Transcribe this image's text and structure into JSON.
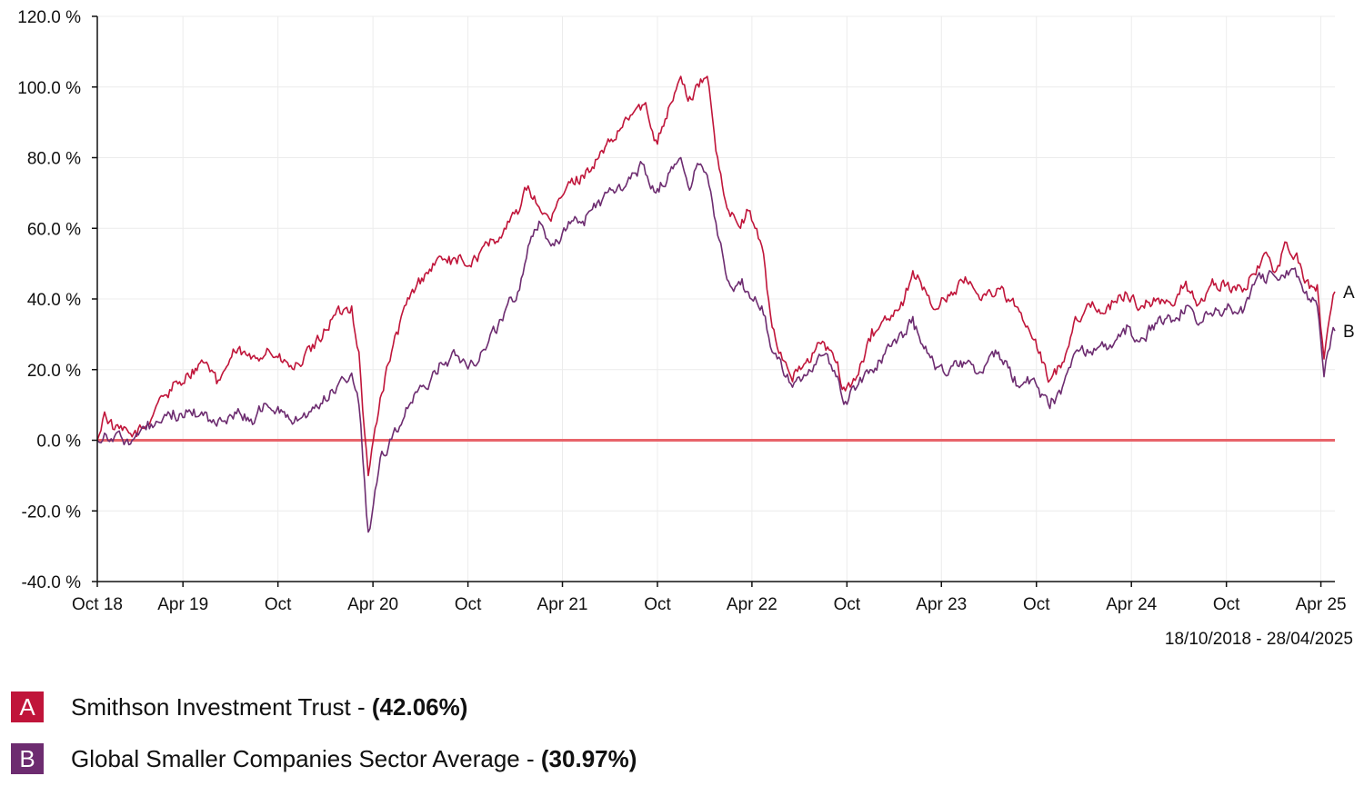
{
  "date_range": "18/10/2018 - 28/04/2025",
  "legend": [
    {
      "badge": "A",
      "name": "Smithson Investment Trust - ",
      "value": "(42.06%)",
      "color": "#c0153a"
    },
    {
      "badge": "B",
      "name": "Global Smaller Companies Sector Average  - ",
      "value": "(30.97%)",
      "color": "#6d2c70"
    }
  ],
  "chart_data": {
    "type": "line",
    "title": "",
    "xlabel": "",
    "ylabel": "",
    "ylim": [
      -40,
      120
    ],
    "y_ticks": [
      120,
      100,
      80,
      60,
      40,
      20,
      0,
      -20,
      -40
    ],
    "y_tick_labels": [
      "120.0 %",
      "100.0 %",
      "80.0 %",
      "60.0 %",
      "40.0 %",
      "20.0 %",
      "0.0 %",
      "-20.0 %",
      "-40.0 %"
    ],
    "x_range": [
      "2018-10-18",
      "2025-04-28"
    ],
    "x_ticks": [
      "2018-10-01",
      "2019-04-01",
      "2019-10-01",
      "2020-04-01",
      "2020-10-01",
      "2021-04-01",
      "2021-10-01",
      "2022-04-01",
      "2022-10-01",
      "2023-04-01",
      "2023-10-01",
      "2024-04-01",
      "2024-10-01",
      "2025-04-01"
    ],
    "x_tick_labels": [
      "Oct 18",
      "Apr 19",
      "Oct",
      "Apr 20",
      "Oct",
      "Apr 21",
      "Oct",
      "Apr 22",
      "Oct",
      "Apr 23",
      "Oct",
      "Apr 24",
      "Oct",
      "Apr 25"
    ],
    "grid": true,
    "zero_line_color": "#e8636a",
    "series": [
      {
        "name": "A",
        "color": "#c0153a",
        "points": [
          [
            "2018-10-18",
            0
          ],
          [
            "2018-11-01",
            8
          ],
          [
            "2018-11-20",
            3
          ],
          [
            "2018-12-24",
            1
          ],
          [
            "2019-01-20",
            4
          ],
          [
            "2019-02-15",
            12
          ],
          [
            "2019-03-10",
            14
          ],
          [
            "2019-04-10",
            19
          ],
          [
            "2019-05-10",
            22
          ],
          [
            "2019-06-05",
            16
          ],
          [
            "2019-07-10",
            25
          ],
          [
            "2019-08-10",
            23
          ],
          [
            "2019-09-10",
            26
          ],
          [
            "2019-10-10",
            22
          ],
          [
            "2019-11-01",
            20
          ],
          [
            "2019-12-10",
            26
          ],
          [
            "2020-01-10",
            34
          ],
          [
            "2020-02-20",
            38
          ],
          [
            "2020-03-05",
            25
          ],
          [
            "2020-03-16",
            2
          ],
          [
            "2020-03-23",
            -10
          ],
          [
            "2020-04-15",
            12
          ],
          [
            "2020-05-10",
            27
          ],
          [
            "2020-06-10",
            40
          ],
          [
            "2020-07-10",
            47
          ],
          [
            "2020-08-10",
            52
          ],
          [
            "2020-09-10",
            50
          ],
          [
            "2020-10-10",
            51
          ],
          [
            "2020-11-10",
            55
          ],
          [
            "2020-12-10",
            60
          ],
          [
            "2021-01-05",
            64
          ],
          [
            "2021-01-25",
            72
          ],
          [
            "2021-02-15",
            66
          ],
          [
            "2021-03-10",
            62
          ],
          [
            "2021-04-10",
            72
          ],
          [
            "2021-05-10",
            75
          ],
          [
            "2021-06-10",
            80
          ],
          [
            "2021-07-10",
            85
          ],
          [
            "2021-08-10",
            92
          ],
          [
            "2021-09-05",
            95
          ],
          [
            "2021-09-28",
            85
          ],
          [
            "2021-10-25",
            95
          ],
          [
            "2021-11-15",
            103
          ],
          [
            "2021-11-29",
            96
          ],
          [
            "2021-12-20",
            100
          ],
          [
            "2022-01-05",
            103
          ],
          [
            "2022-01-25",
            80
          ],
          [
            "2022-02-15",
            65
          ],
          [
            "2022-03-10",
            60
          ],
          [
            "2022-03-25",
            65
          ],
          [
            "2022-04-20",
            55
          ],
          [
            "2022-05-10",
            32
          ],
          [
            "2022-06-15",
            18
          ],
          [
            "2022-07-20",
            22
          ],
          [
            "2022-08-15",
            28
          ],
          [
            "2022-09-10",
            22
          ],
          [
            "2022-09-28",
            14
          ],
          [
            "2022-10-20",
            18
          ],
          [
            "2022-11-15",
            28
          ],
          [
            "2022-12-10",
            34
          ],
          [
            "2023-01-20",
            40
          ],
          [
            "2023-02-05",
            48
          ],
          [
            "2023-03-20",
            37
          ],
          [
            "2023-04-20",
            42
          ],
          [
            "2023-05-20",
            45
          ],
          [
            "2023-06-20",
            41
          ],
          [
            "2023-07-20",
            43
          ],
          [
            "2023-08-20",
            38
          ],
          [
            "2023-09-20",
            30
          ],
          [
            "2023-10-27",
            17
          ],
          [
            "2023-11-20",
            22
          ],
          [
            "2023-12-15",
            35
          ],
          [
            "2024-01-20",
            38
          ],
          [
            "2024-02-20",
            37
          ],
          [
            "2024-03-20",
            42
          ],
          [
            "2024-04-20",
            38
          ],
          [
            "2024-05-20",
            40
          ],
          [
            "2024-06-20",
            38
          ],
          [
            "2024-07-15",
            45
          ],
          [
            "2024-08-05",
            38
          ],
          [
            "2024-09-01",
            44
          ],
          [
            "2024-10-01",
            44
          ],
          [
            "2024-11-01",
            42
          ],
          [
            "2024-11-20",
            47
          ],
          [
            "2024-12-10",
            52
          ],
          [
            "2025-01-05",
            48
          ],
          [
            "2025-01-25",
            56
          ],
          [
            "2025-02-20",
            50
          ],
          [
            "2025-03-10",
            43
          ],
          [
            "2025-03-25",
            44
          ],
          [
            "2025-04-07",
            23
          ],
          [
            "2025-04-18",
            35
          ],
          [
            "2025-04-28",
            42.06
          ]
        ]
      },
      {
        "name": "B",
        "color": "#6d2c70",
        "points": [
          [
            "2018-10-18",
            0
          ],
          [
            "2018-11-01",
            2
          ],
          [
            "2018-11-20",
            1
          ],
          [
            "2018-12-24",
            0
          ],
          [
            "2019-01-20",
            3
          ],
          [
            "2019-02-15",
            5
          ],
          [
            "2019-03-10",
            6
          ],
          [
            "2019-04-10",
            8
          ],
          [
            "2019-05-10",
            7
          ],
          [
            "2019-06-05",
            4
          ],
          [
            "2019-07-10",
            8
          ],
          [
            "2019-08-10",
            6
          ],
          [
            "2019-09-10",
            10
          ],
          [
            "2019-10-10",
            8
          ],
          [
            "2019-11-01",
            5
          ],
          [
            "2019-12-10",
            9
          ],
          [
            "2020-01-10",
            14
          ],
          [
            "2020-02-20",
            19
          ],
          [
            "2020-03-05",
            10
          ],
          [
            "2020-03-16",
            -12
          ],
          [
            "2020-03-23",
            -26
          ],
          [
            "2020-04-15",
            -5
          ],
          [
            "2020-05-10",
            2
          ],
          [
            "2020-06-10",
            10
          ],
          [
            "2020-07-10",
            15
          ],
          [
            "2020-08-10",
            22
          ],
          [
            "2020-09-10",
            24
          ],
          [
            "2020-10-10",
            22
          ],
          [
            "2020-11-10",
            28
          ],
          [
            "2020-12-10",
            36
          ],
          [
            "2021-01-05",
            42
          ],
          [
            "2021-01-25",
            55
          ],
          [
            "2021-02-15",
            62
          ],
          [
            "2021-03-10",
            55
          ],
          [
            "2021-04-10",
            60
          ],
          [
            "2021-05-10",
            62
          ],
          [
            "2021-06-10",
            68
          ],
          [
            "2021-07-10",
            70
          ],
          [
            "2021-08-10",
            74
          ],
          [
            "2021-09-05",
            78
          ],
          [
            "2021-09-28",
            70
          ],
          [
            "2021-10-25",
            76
          ],
          [
            "2021-11-15",
            80
          ],
          [
            "2021-11-29",
            72
          ],
          [
            "2021-12-20",
            78
          ],
          [
            "2022-01-05",
            75
          ],
          [
            "2022-01-25",
            58
          ],
          [
            "2022-02-15",
            45
          ],
          [
            "2022-03-10",
            44
          ],
          [
            "2022-03-25",
            42
          ],
          [
            "2022-04-20",
            38
          ],
          [
            "2022-05-10",
            25
          ],
          [
            "2022-06-15",
            16
          ],
          [
            "2022-07-20",
            20
          ],
          [
            "2022-08-15",
            24
          ],
          [
            "2022-09-10",
            18
          ],
          [
            "2022-09-28",
            11
          ],
          [
            "2022-10-20",
            15
          ],
          [
            "2022-11-15",
            20
          ],
          [
            "2022-12-10",
            24
          ],
          [
            "2023-01-20",
            30
          ],
          [
            "2023-02-05",
            35
          ],
          [
            "2023-03-20",
            20
          ],
          [
            "2023-04-20",
            21
          ],
          [
            "2023-05-20",
            22
          ],
          [
            "2023-06-20",
            19
          ],
          [
            "2023-07-20",
            25
          ],
          [
            "2023-08-20",
            18
          ],
          [
            "2023-09-20",
            17
          ],
          [
            "2023-10-27",
            9
          ],
          [
            "2023-11-20",
            15
          ],
          [
            "2023-12-15",
            25
          ],
          [
            "2024-01-20",
            26
          ],
          [
            "2024-02-20",
            27
          ],
          [
            "2024-03-20",
            30
          ],
          [
            "2024-04-20",
            29
          ],
          [
            "2024-05-20",
            33
          ],
          [
            "2024-06-20",
            34
          ],
          [
            "2024-07-15",
            38
          ],
          [
            "2024-08-05",
            33
          ],
          [
            "2024-09-01",
            36
          ],
          [
            "2024-10-01",
            37
          ],
          [
            "2024-11-01",
            36
          ],
          [
            "2024-11-20",
            44
          ],
          [
            "2024-12-10",
            47
          ],
          [
            "2025-01-05",
            46
          ],
          [
            "2025-01-25",
            48
          ],
          [
            "2025-02-20",
            45
          ],
          [
            "2025-03-10",
            40
          ],
          [
            "2025-03-25",
            38
          ],
          [
            "2025-04-07",
            18
          ],
          [
            "2025-04-18",
            26
          ],
          [
            "2025-04-28",
            30.97
          ]
        ]
      }
    ]
  }
}
